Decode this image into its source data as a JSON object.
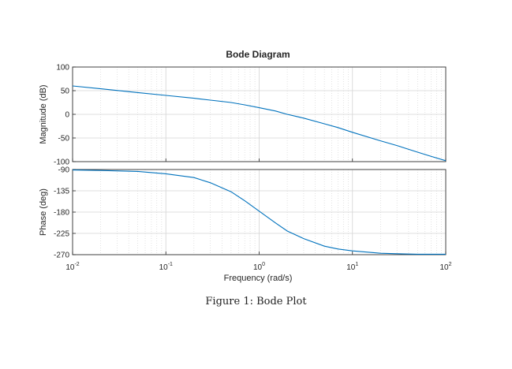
{
  "chart_data": {
    "type": "line",
    "title": "Bode Diagram",
    "xlabel": "Frequency  (rad/s)",
    "xscale": "log",
    "xlim": [
      0.01,
      100
    ],
    "x_ticks": [
      {
        "value": 0.01,
        "base": "10",
        "exp": "-2"
      },
      {
        "value": 0.1,
        "base": "10",
        "exp": "-1"
      },
      {
        "value": 1,
        "base": "10",
        "exp": "0"
      },
      {
        "value": 10,
        "base": "10",
        "exp": "1"
      },
      {
        "value": 100,
        "base": "10",
        "exp": "2"
      }
    ],
    "grid": true,
    "line_color": "#0072bd",
    "subplots": [
      {
        "name": "magnitude",
        "ylabel": "Magnitude (dB)",
        "ylim": [
          -100,
          100
        ],
        "y_ticks": [
          "100",
          "50",
          "0",
          "-50",
          "-100"
        ],
        "points": [
          [
            0.01,
            60.0
          ],
          [
            0.02,
            54.0
          ],
          [
            0.05,
            46.0
          ],
          [
            0.1,
            40.0
          ],
          [
            0.2,
            34.0
          ],
          [
            0.3,
            30.0
          ],
          [
            0.5,
            25.0
          ],
          [
            0.7,
            20.0
          ],
          [
            1,
            14.0
          ],
          [
            1.5,
            7.0
          ],
          [
            2,
            0.0
          ],
          [
            3,
            -8.0
          ],
          [
            5,
            -20.0
          ],
          [
            7,
            -28.0
          ],
          [
            10,
            -38.0
          ],
          [
            20,
            -56.0
          ],
          [
            30,
            -66.0
          ],
          [
            50,
            -80.0
          ],
          [
            70,
            -89.0
          ],
          [
            100,
            -98.0
          ]
        ]
      },
      {
        "name": "phase",
        "ylabel": "Phase (deg)",
        "ylim": [
          -270,
          -90
        ],
        "y_ticks": [
          "-90",
          "-135",
          "-180",
          "-225",
          "-270"
        ],
        "points": [
          [
            0.01,
            -91.0
          ],
          [
            0.02,
            -92.0
          ],
          [
            0.05,
            -94.0
          ],
          [
            0.1,
            -99.0
          ],
          [
            0.2,
            -107.0
          ],
          [
            0.3,
            -118.0
          ],
          [
            0.5,
            -137.0
          ],
          [
            0.7,
            -156.0
          ],
          [
            1,
            -178.0
          ],
          [
            1.5,
            -203.0
          ],
          [
            2,
            -220.0
          ],
          [
            3,
            -236.0
          ],
          [
            5,
            -252.0
          ],
          [
            7,
            -258.0
          ],
          [
            10,
            -262.0
          ],
          [
            20,
            -267.0
          ],
          [
            30,
            -268.0
          ],
          [
            50,
            -269.0
          ],
          [
            70,
            -269.0
          ],
          [
            100,
            -269.0
          ]
        ]
      }
    ]
  },
  "caption": "Figure 1: Bode Plot"
}
